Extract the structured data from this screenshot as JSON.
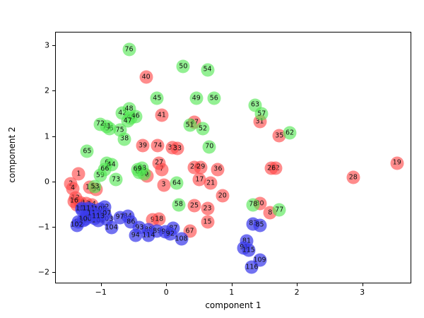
{
  "chart_data": {
    "type": "scatter",
    "title": "",
    "xlabel": "component 1",
    "ylabel": "component 2",
    "xlim": [
      -1.7,
      3.75
    ],
    "ylim": [
      -2.25,
      3.3
    ],
    "xticks": [
      -1,
      0,
      1,
      2,
      3
    ],
    "yticks": [
      -2,
      -1,
      0,
      1,
      2,
      3
    ],
    "grid": false,
    "legend": "none",
    "marker_size_px": 19,
    "class_colors": {
      "red": "rgba(255,70,70,0.62)",
      "green": "rgba(80,230,80,0.62)",
      "blue": "rgba(60,60,235,0.72)"
    },
    "points": [
      {
        "label": "0",
        "x": -0.3,
        "y": 0.14,
        "class": "red"
      },
      {
        "label": "1",
        "x": -1.35,
        "y": 0.18,
        "class": "red"
      },
      {
        "label": "2",
        "x": -1.47,
        "y": -0.04,
        "class": "red"
      },
      {
        "label": "3",
        "x": -0.05,
        "y": -0.06,
        "class": "red"
      },
      {
        "label": "4",
        "x": -1.44,
        "y": -0.14,
        "class": "red"
      },
      {
        "label": "5",
        "x": -1.38,
        "y": -0.5,
        "class": "red"
      },
      {
        "label": "6",
        "x": -0.92,
        "y": 0.42,
        "class": "green"
      },
      {
        "label": "7",
        "x": -0.08,
        "y": 0.28,
        "class": "red"
      },
      {
        "label": "8",
        "x": 1.58,
        "y": -0.68,
        "class": "red"
      },
      {
        "label": "9",
        "x": -0.22,
        "y": -0.83,
        "class": "red"
      },
      {
        "label": "10",
        "x": -1.32,
        "y": -0.45,
        "class": "red"
      },
      {
        "label": "11",
        "x": -1.24,
        "y": -0.47,
        "class": "red"
      },
      {
        "label": "12",
        "x": -1.4,
        "y": -0.35,
        "class": "red"
      },
      {
        "label": "13",
        "x": -1.18,
        "y": -0.12,
        "class": "red"
      },
      {
        "label": "14",
        "x": -1.15,
        "y": -0.5,
        "class": "red"
      },
      {
        "label": "15",
        "x": 0.62,
        "y": -0.88,
        "class": "red"
      },
      {
        "label": "16",
        "x": -1.42,
        "y": -0.42,
        "class": "red"
      },
      {
        "label": "17",
        "x": 0.5,
        "y": 0.05,
        "class": "red"
      },
      {
        "label": "18",
        "x": -0.12,
        "y": -0.82,
        "class": "red"
      },
      {
        "label": "19",
        "x": 3.52,
        "y": 0.42,
        "class": "red"
      },
      {
        "label": "20",
        "x": 0.85,
        "y": -0.3,
        "class": "red"
      },
      {
        "label": "21",
        "x": 0.67,
        "y": -0.02,
        "class": "red"
      },
      {
        "label": "22",
        "x": 1.66,
        "y": 0.3,
        "class": "red"
      },
      {
        "label": "23",
        "x": 0.62,
        "y": -0.58,
        "class": "red"
      },
      {
        "label": "24",
        "x": 0.42,
        "y": 0.33,
        "class": "red"
      },
      {
        "label": "25",
        "x": 0.42,
        "y": -0.52,
        "class": "red"
      },
      {
        "label": "26",
        "x": 1.6,
        "y": 0.3,
        "class": "red"
      },
      {
        "label": "27",
        "x": -0.12,
        "y": 0.42,
        "class": "red"
      },
      {
        "label": "28",
        "x": 2.85,
        "y": 0.1,
        "class": "red"
      },
      {
        "label": "29",
        "x": 0.52,
        "y": 0.33,
        "class": "red"
      },
      {
        "label": "30",
        "x": 1.42,
        "y": -0.48,
        "class": "red"
      },
      {
        "label": "31",
        "x": 1.42,
        "y": 1.33,
        "class": "red"
      },
      {
        "label": "32",
        "x": 0.08,
        "y": 0.76,
        "class": "red"
      },
      {
        "label": "33",
        "x": 0.16,
        "y": 0.74,
        "class": "red"
      },
      {
        "label": "34",
        "x": -1.08,
        "y": -0.16,
        "class": "red"
      },
      {
        "label": "35",
        "x": 1.72,
        "y": 1.02,
        "class": "red"
      },
      {
        "label": "36",
        "x": 0.78,
        "y": 0.28,
        "class": "red"
      },
      {
        "label": "37",
        "x": 0.42,
        "y": 1.32,
        "class": "red"
      },
      {
        "label": "38",
        "x": -0.65,
        "y": 0.95,
        "class": "green"
      },
      {
        "label": "39",
        "x": -0.37,
        "y": 0.8,
        "class": "red"
      },
      {
        "label": "40",
        "x": -0.32,
        "y": 2.32,
        "class": "red"
      },
      {
        "label": "41",
        "x": -0.08,
        "y": 1.47,
        "class": "red"
      },
      {
        "label": "42",
        "x": -0.68,
        "y": 1.52,
        "class": "green"
      },
      {
        "label": "43",
        "x": -0.55,
        "y": 1.42,
        "class": "green"
      },
      {
        "label": "44",
        "x": -0.85,
        "y": 0.38,
        "class": "green"
      },
      {
        "label": "45",
        "x": -0.15,
        "y": 1.85,
        "class": "green"
      },
      {
        "label": "46",
        "x": -0.48,
        "y": 1.45,
        "class": "green"
      },
      {
        "label": "47",
        "x": -0.6,
        "y": 1.35,
        "class": "green"
      },
      {
        "label": "48",
        "x": -0.58,
        "y": 1.62,
        "class": "green"
      },
      {
        "label": "49",
        "x": 0.45,
        "y": 1.85,
        "class": "green"
      },
      {
        "label": "50",
        "x": 0.25,
        "y": 2.55,
        "class": "green"
      },
      {
        "label": "51",
        "x": 0.35,
        "y": 1.25,
        "class": "green"
      },
      {
        "label": "52",
        "x": 0.55,
        "y": 1.18,
        "class": "green"
      },
      {
        "label": "53",
        "x": -1.1,
        "y": -0.1,
        "class": "green"
      },
      {
        "label": "54",
        "x": 0.62,
        "y": 2.48,
        "class": "green"
      },
      {
        "label": "55",
        "x": -0.88,
        "y": 1.18,
        "class": "green"
      },
      {
        "label": "56",
        "x": 0.72,
        "y": 1.85,
        "class": "green"
      },
      {
        "label": "57",
        "x": 1.45,
        "y": 1.5,
        "class": "green"
      },
      {
        "label": "58",
        "x": 0.18,
        "y": -0.5,
        "class": "green"
      },
      {
        "label": "59",
        "x": -1.02,
        "y": 0.15,
        "class": "green"
      },
      {
        "label": "60",
        "x": -0.35,
        "y": 0.18,
        "class": "green"
      },
      {
        "label": "61",
        "x": -0.42,
        "y": 0.22,
        "class": "green"
      },
      {
        "label": "62",
        "x": 1.88,
        "y": 1.08,
        "class": "green"
      },
      {
        "label": "63",
        "x": 1.35,
        "y": 1.7,
        "class": "green"
      },
      {
        "label": "64",
        "x": 0.15,
        "y": -0.02,
        "class": "green"
      },
      {
        "label": "65",
        "x": -1.22,
        "y": 0.68,
        "class": "green"
      },
      {
        "label": "66",
        "x": -0.95,
        "y": 0.28,
        "class": "green"
      },
      {
        "label": "67",
        "x": 0.35,
        "y": -1.08,
        "class": "red"
      },
      {
        "label": "68",
        "x": -0.38,
        "y": 0.3,
        "class": "green"
      },
      {
        "label": "69",
        "x": -0.45,
        "y": 0.28,
        "class": "green"
      },
      {
        "label": "70",
        "x": 0.65,
        "y": 0.78,
        "class": "green"
      },
      {
        "label": "71",
        "x": -0.92,
        "y": 1.22,
        "class": "green"
      },
      {
        "label": "72",
        "x": -1.02,
        "y": 1.28,
        "class": "green"
      },
      {
        "label": "73",
        "x": -0.78,
        "y": 0.05,
        "class": "green"
      },
      {
        "label": "74",
        "x": -0.14,
        "y": 0.8,
        "class": "red"
      },
      {
        "label": "75",
        "x": -0.72,
        "y": 1.15,
        "class": "green"
      },
      {
        "label": "76",
        "x": -0.58,
        "y": 2.92,
        "class": "green"
      },
      {
        "label": "77",
        "x": 1.72,
        "y": -0.62,
        "class": "green"
      },
      {
        "label": "78",
        "x": 1.32,
        "y": -0.5,
        "class": "green"
      },
      {
        "label": "79",
        "x": -1.3,
        "y": -0.62,
        "class": "blue"
      },
      {
        "label": "80",
        "x": -1.22,
        "y": -0.7,
        "class": "blue"
      },
      {
        "label": "81",
        "x": 1.22,
        "y": -1.3,
        "class": "blue"
      },
      {
        "label": "82",
        "x": -0.95,
        "y": -0.55,
        "class": "blue"
      },
      {
        "label": "83",
        "x": 1.32,
        "y": -0.92,
        "class": "blue"
      },
      {
        "label": "84",
        "x": -0.6,
        "y": -0.75,
        "class": "blue"
      },
      {
        "label": "85",
        "x": 1.42,
        "y": -0.95,
        "class": "blue"
      },
      {
        "label": "86",
        "x": -0.55,
        "y": -0.88,
        "class": "blue"
      },
      {
        "label": "87",
        "x": 0.1,
        "y": -1.02,
        "class": "blue"
      },
      {
        "label": "88",
        "x": -0.28,
        "y": -1.05,
        "class": "blue"
      },
      {
        "label": "89",
        "x": -0.15,
        "y": -1.08,
        "class": "blue"
      },
      {
        "label": "90",
        "x": -0.02,
        "y": -1.1,
        "class": "blue"
      },
      {
        "label": "91",
        "x": 1.18,
        "y": -1.45,
        "class": "blue"
      },
      {
        "label": "92",
        "x": 0.05,
        "y": -1.15,
        "class": "blue"
      },
      {
        "label": "93",
        "x": -0.42,
        "y": -1.0,
        "class": "blue"
      },
      {
        "label": "94",
        "x": -0.48,
        "y": -1.18,
        "class": "blue"
      },
      {
        "label": "95",
        "x": -1.35,
        "y": -0.88,
        "class": "blue"
      },
      {
        "label": "96",
        "x": -1.28,
        "y": -0.85,
        "class": "blue"
      },
      {
        "label": "97",
        "x": -0.72,
        "y": -0.78,
        "class": "blue"
      },
      {
        "label": "98",
        "x": -1.1,
        "y": -0.8,
        "class": "blue"
      },
      {
        "label": "99",
        "x": -1.18,
        "y": -0.75,
        "class": "blue"
      },
      {
        "label": "100",
        "x": -1.25,
        "y": -0.82,
        "class": "blue"
      },
      {
        "label": "101",
        "x": -1.05,
        "y": -0.85,
        "class": "blue"
      },
      {
        "label": "102",
        "x": -1.38,
        "y": -0.95,
        "class": "blue"
      },
      {
        "label": "103",
        "x": -0.92,
        "y": -0.82,
        "class": "blue"
      },
      {
        "label": "104",
        "x": -0.85,
        "y": -1.0,
        "class": "blue"
      },
      {
        "label": "105",
        "x": -1.15,
        "y": -0.62,
        "class": "blue"
      },
      {
        "label": "106",
        "x": -1.02,
        "y": -0.6,
        "class": "blue"
      },
      {
        "label": "107",
        "x": -0.95,
        "y": -0.7,
        "class": "blue"
      },
      {
        "label": "108",
        "x": 0.22,
        "y": -1.25,
        "class": "blue"
      },
      {
        "label": "109",
        "x": 1.42,
        "y": -1.72,
        "class": "blue"
      },
      {
        "label": "110",
        "x": -1.3,
        "y": -0.58,
        "class": "blue"
      },
      {
        "label": "111",
        "x": -1.2,
        "y": -0.58,
        "class": "blue"
      },
      {
        "label": "112",
        "x": -1.12,
        "y": -0.7,
        "class": "blue"
      },
      {
        "label": "113",
        "x": -1.05,
        "y": -0.75,
        "class": "blue"
      },
      {
        "label": "114",
        "x": -0.28,
        "y": -1.18,
        "class": "blue"
      },
      {
        "label": "115",
        "x": 1.25,
        "y": -1.5,
        "class": "blue"
      },
      {
        "label": "116",
        "x": 1.3,
        "y": -1.88,
        "class": "blue"
      }
    ]
  }
}
